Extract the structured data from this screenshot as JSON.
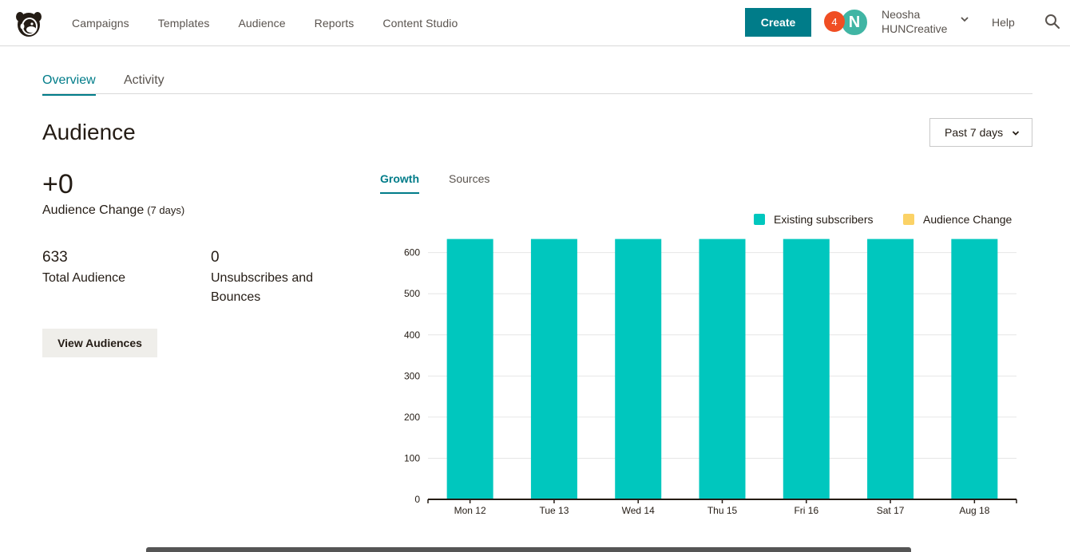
{
  "nav": {
    "items": [
      "Campaigns",
      "Templates",
      "Audience",
      "Reports",
      "Content Studio"
    ],
    "create_label": "Create",
    "notification_count": "4",
    "avatar_initial": "N",
    "user_line1": "Neosha",
    "user_line2": "HUNCreative",
    "help_label": "Help"
  },
  "tabs": {
    "overview": "Overview",
    "activity": "Activity"
  },
  "page": {
    "title": "Audience",
    "range": "Past 7 days"
  },
  "stats": {
    "change_value": "+0",
    "change_label": "Audience Change",
    "change_period": "(7 days)",
    "total_value": "633",
    "total_label": "Total Audience",
    "unsub_value": "0",
    "unsub_label": "Unsubscribes and Bounces",
    "view_button": "View Audiences"
  },
  "chart_tabs": {
    "growth": "Growth",
    "sources": "Sources"
  },
  "colors": {
    "accent": "#007c89",
    "existing": "#00c7be",
    "change": "#fbd266"
  },
  "chart_data": {
    "type": "bar",
    "categories": [
      "Mon 12",
      "Tue 13",
      "Wed 14",
      "Thu 15",
      "Fri 16",
      "Sat 17",
      "Aug 18"
    ],
    "series": [
      {
        "name": "Existing subscribers",
        "values": [
          633,
          633,
          633,
          633,
          633,
          633,
          633
        ]
      },
      {
        "name": "Audience Change",
        "values": [
          0,
          0,
          0,
          0,
          0,
          0,
          0
        ]
      }
    ],
    "yticks": [
      0,
      100,
      200,
      300,
      400,
      500,
      600
    ],
    "ylim": [
      0,
      640
    ],
    "grid": true,
    "legend": "top-right",
    "stacked": true
  }
}
